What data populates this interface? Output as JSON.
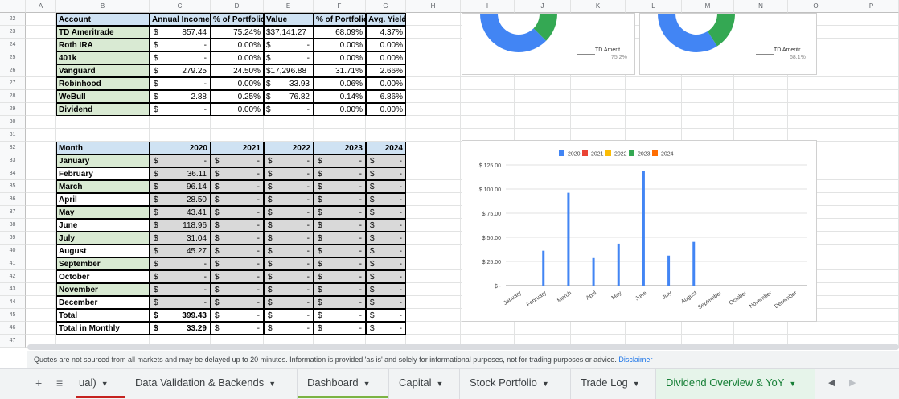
{
  "columns": [
    "A",
    "B",
    "C",
    "D",
    "E",
    "F",
    "G",
    "H",
    "I",
    "J",
    "K",
    "L",
    "M",
    "N",
    "O",
    "P"
  ],
  "rows": [
    "22",
    "23",
    "24",
    "25",
    "26",
    "27",
    "28",
    "29",
    "30",
    "31",
    "32",
    "33",
    "34",
    "35",
    "36",
    "37",
    "38",
    "39",
    "40",
    "41",
    "42",
    "43",
    "44",
    "45",
    "46",
    "47"
  ],
  "accounts": {
    "headers": [
      "Account",
      "Annual Income",
      "% of Portfolio",
      "Value",
      "% of Portfolio",
      "Avg. Yield"
    ],
    "rows": [
      {
        "name": "TD Ameritrade",
        "income_cur": "$",
        "income": "857.44",
        "pct": "75.24%",
        "value_cur": "$37,141.27",
        "value": "",
        "pct2": "68.09%",
        "yield": "4.37%"
      },
      {
        "name": "Roth IRA",
        "income_cur": "$",
        "income": "-",
        "pct": "0.00%",
        "value_cur": "$",
        "value": "-",
        "pct2": "0.00%",
        "yield": "0.00%"
      },
      {
        "name": "401k",
        "income_cur": "$",
        "income": "-",
        "pct": "0.00%",
        "value_cur": "$",
        "value": "-",
        "pct2": "0.00%",
        "yield": "0.00%"
      },
      {
        "name": "Vanguard",
        "income_cur": "$",
        "income": "279.25",
        "pct": "24.50%",
        "value_cur": "$17,296.88",
        "value": "",
        "pct2": "31.71%",
        "yield": "2.66%"
      },
      {
        "name": "Robinhood",
        "income_cur": "$",
        "income": "-",
        "pct": "0.00%",
        "value_cur": "$",
        "value": "33.93",
        "pct2": "0.06%",
        "yield": "0.00%"
      },
      {
        "name": "WeBull",
        "income_cur": "$",
        "income": "2.88",
        "pct": "0.25%",
        "value_cur": "$",
        "value": "76.82",
        "pct2": "0.14%",
        "yield": "6.86%"
      },
      {
        "name": "Dividend",
        "income_cur": "$",
        "income": "-",
        "pct": "0.00%",
        "value_cur": "$",
        "value": "-",
        "pct2": "0.00%",
        "yield": "0.00%"
      }
    ]
  },
  "monthly": {
    "headers": [
      "Month",
      "2020",
      "2021",
      "2022",
      "2023",
      "2024"
    ],
    "rows": [
      {
        "month": "January",
        "v2020": "-"
      },
      {
        "month": "February",
        "v2020": "36.11"
      },
      {
        "month": "March",
        "v2020": "96.14"
      },
      {
        "month": "April",
        "v2020": "28.50"
      },
      {
        "month": "May",
        "v2020": "43.41"
      },
      {
        "month": "June",
        "v2020": "118.96"
      },
      {
        "month": "July",
        "v2020": "31.04"
      },
      {
        "month": "August",
        "v2020": "45.27"
      },
      {
        "month": "September",
        "v2020": "-"
      },
      {
        "month": "October",
        "v2020": "-"
      },
      {
        "month": "November",
        "v2020": "-"
      },
      {
        "month": "December",
        "v2020": "-"
      },
      {
        "month": "Total",
        "v2020": "399.43"
      },
      {
        "month": "Total in Monthly",
        "v2020": "33.29"
      }
    ],
    "dash": "-",
    "currency": "$"
  },
  "donut1": {
    "label": "TD Amerit...",
    "pct": "75.2%",
    "value": 0.752
  },
  "donut2": {
    "label": "TD Ameritr...",
    "pct": "68.1%",
    "value": 0.681
  },
  "chart_data": {
    "type": "bar",
    "categories": [
      "January",
      "February",
      "March",
      "April",
      "May",
      "June",
      "July",
      "August",
      "September",
      "October",
      "November",
      "December"
    ],
    "series": [
      {
        "name": "2020",
        "color": "#4285f4",
        "values": [
          0,
          36.11,
          96.14,
          28.5,
          43.41,
          118.96,
          31.04,
          45.27,
          0,
          0,
          0,
          0
        ]
      },
      {
        "name": "2021",
        "color": "#ea4335",
        "values": [
          0,
          0,
          0,
          0,
          0,
          0,
          0,
          0,
          0,
          0,
          0,
          0
        ]
      },
      {
        "name": "2022",
        "color": "#fbbc04",
        "values": [
          0,
          0,
          0,
          0,
          0,
          0,
          0,
          0,
          0,
          0,
          0,
          0
        ]
      },
      {
        "name": "2023",
        "color": "#34a853",
        "values": [
          0,
          0,
          0,
          0,
          0,
          0,
          0,
          0,
          0,
          0,
          0,
          0
        ]
      },
      {
        "name": "2024",
        "color": "#ff6d01",
        "values": [
          0,
          0,
          0,
          0,
          0,
          0,
          0,
          0,
          0,
          0,
          0,
          0
        ]
      }
    ],
    "yticks": [
      "$ 125.00",
      "$ 100.00",
      "$ 75.00",
      "$ 50.00",
      "$ 25.00",
      "$ -"
    ],
    "ytick_values": [
      125,
      100,
      75,
      50,
      25,
      0
    ],
    "ylim": [
      0,
      125
    ],
    "legend": "top"
  },
  "footer": {
    "note": "Quotes are not sourced from all markets and may be delayed up to 20 minutes. Information is provided 'as is' and solely for informational purposes, not for trading purposes or advice.",
    "link": "Disclaimer"
  },
  "tabs": [
    {
      "label": "ual)",
      "underline": "#c5221f"
    },
    {
      "label": "Data Validation & Backends",
      "underline": ""
    },
    {
      "label": "Dashboard",
      "underline": "#7cb342"
    },
    {
      "label": "Capital",
      "underline": ""
    },
    {
      "label": "Stock Portfolio",
      "underline": ""
    },
    {
      "label": "Trade Log",
      "underline": ""
    },
    {
      "label": "Dividend Overview & YoY",
      "underline": "",
      "active": true
    }
  ],
  "colors": {
    "green": "#d9ead3",
    "blue": "#cfe2f3",
    "gray": "#d9d9d9",
    "accent": "#188038"
  }
}
